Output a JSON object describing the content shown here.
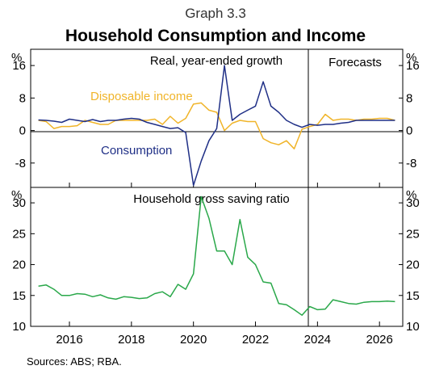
{
  "header": {
    "graph_label": "Graph 3.3",
    "title": "Household Consumption and Income"
  },
  "footer": {
    "sources": "Sources:   ABS;  RBA."
  },
  "colors": {
    "consumption": "#1f2f86",
    "disposable_income": "#f0b429",
    "saving_ratio": "#2aa84a",
    "axis": "#000000",
    "zero_line": "#000000",
    "forecast_divider": "#000000"
  },
  "x_axis": {
    "tick_labels": [
      "2016",
      "2018",
      "2020",
      "2022",
      "2024",
      "2026"
    ],
    "tick_values": [
      2016,
      2018,
      2020,
      2022,
      2024,
      2026
    ],
    "range": [
      2014.75,
      2026.75
    ],
    "forecast_start": 2023.95
  },
  "chart_data": [
    {
      "type": "line",
      "panel": "top",
      "title": "Real, year-ended growth",
      "forecast_label": "Forecasts",
      "y_unit_left": "%",
      "y_unit_right": "%",
      "ylim": [
        -14,
        20
      ],
      "y_ticks": [
        16,
        8,
        0,
        -8
      ],
      "y_tick_labels": [
        "16",
        "8",
        "0",
        "-8"
      ],
      "grid": false,
      "series": [
        {
          "name": "Disposable income",
          "color": "#f0b429",
          "x": [
            2015.0,
            2015.25,
            2015.5,
            2015.75,
            2016.0,
            2016.25,
            2016.5,
            2016.75,
            2017.0,
            2017.25,
            2017.5,
            2017.75,
            2018.0,
            2018.25,
            2018.5,
            2018.75,
            2019.0,
            2019.25,
            2019.5,
            2019.75,
            2020.0,
            2020.25,
            2020.5,
            2020.75,
            2021.0,
            2021.25,
            2021.5,
            2021.75,
            2022.0,
            2022.25,
            2022.5,
            2022.75,
            2023.0,
            2023.25,
            2023.5,
            2023.75,
            2024.0,
            2024.25,
            2024.5,
            2024.75,
            2025.0,
            2025.25,
            2025.5,
            2025.75,
            2026.0,
            2026.25,
            2026.5
          ],
          "y": [
            2.5,
            2.2,
            0.5,
            1.0,
            1.0,
            1.2,
            2.5,
            2.0,
            1.5,
            1.5,
            2.5,
            2.5,
            2.5,
            2.5,
            2.5,
            2.8,
            1.5,
            3.5,
            1.8,
            3.0,
            6.5,
            6.8,
            5.0,
            4.5,
            0.0,
            1.8,
            2.5,
            2.2,
            2.2,
            -2.0,
            -3.0,
            -3.5,
            -2.5,
            -4.5,
            0.3,
            1.0,
            1.5,
            4.0,
            2.5,
            2.8,
            2.8,
            2.5,
            2.8,
            2.8,
            3.0,
            3.0,
            2.5
          ]
        },
        {
          "name": "Consumption",
          "color": "#1f2f86",
          "x": [
            2015.0,
            2015.25,
            2015.5,
            2015.75,
            2016.0,
            2016.25,
            2016.5,
            2016.75,
            2017.0,
            2017.25,
            2017.5,
            2017.75,
            2018.0,
            2018.25,
            2018.5,
            2018.75,
            2019.0,
            2019.25,
            2019.5,
            2019.75,
            2020.0,
            2020.25,
            2020.5,
            2020.75,
            2021.0,
            2021.25,
            2021.5,
            2021.75,
            2022.0,
            2022.25,
            2022.5,
            2022.75,
            2023.0,
            2023.25,
            2023.5,
            2023.75,
            2024.0,
            2024.25,
            2024.5,
            2024.75,
            2025.0,
            2025.25,
            2025.5,
            2025.75,
            2026.0,
            2026.25,
            2026.5
          ],
          "y": [
            2.6,
            2.5,
            2.3,
            2.0,
            2.8,
            2.5,
            2.2,
            2.7,
            2.2,
            2.5,
            2.5,
            2.8,
            3.0,
            2.8,
            2.0,
            1.5,
            1.0,
            0.5,
            0.7,
            -0.5,
            -13.5,
            -7.5,
            -2.5,
            0.5,
            16.0,
            2.5,
            4.0,
            5.0,
            6.0,
            12.0,
            6.0,
            4.5,
            2.5,
            1.5,
            0.8,
            1.5,
            1.3,
            1.5,
            1.5,
            1.8,
            2.0,
            2.5,
            2.5,
            2.5,
            2.5,
            2.5,
            2.5
          ]
        }
      ]
    },
    {
      "type": "line",
      "panel": "bottom",
      "title": "Household gross saving ratio",
      "y_unit_left": "%",
      "y_unit_right": "%",
      "ylim": [
        10,
        32.5
      ],
      "y_ticks": [
        30,
        25,
        20,
        15,
        10
      ],
      "y_tick_labels": [
        "30",
        "25",
        "20",
        "15",
        "10"
      ],
      "grid": false,
      "series": [
        {
          "color": "#2aa84a",
          "x": [
            2015.0,
            2015.25,
            2015.5,
            2015.75,
            2016.0,
            2016.25,
            2016.5,
            2016.75,
            2017.0,
            2017.25,
            2017.5,
            2017.75,
            2018.0,
            2018.25,
            2018.5,
            2018.75,
            2019.0,
            2019.25,
            2019.5,
            2019.75,
            2020.0,
            2020.25,
            2020.5,
            2020.75,
            2021.0,
            2021.25,
            2021.5,
            2021.75,
            2022.0,
            2022.25,
            2022.5,
            2022.75,
            2023.0,
            2023.25,
            2023.5,
            2023.75,
            2024.0,
            2024.25,
            2024.5,
            2024.75,
            2025.0,
            2025.25,
            2025.5,
            2025.75,
            2026.0,
            2026.25,
            2026.5
          ],
          "y": [
            16.5,
            16.7,
            16.0,
            15.0,
            15.0,
            15.3,
            15.2,
            14.8,
            15.1,
            14.6,
            14.4,
            14.8,
            14.7,
            14.5,
            14.6,
            15.3,
            15.6,
            14.8,
            16.8,
            16.0,
            18.5,
            31.0,
            27.5,
            22.2,
            22.2,
            20.0,
            27.3,
            21.2,
            20.0,
            17.2,
            17.0,
            13.7,
            13.5,
            12.7,
            11.8,
            13.2,
            12.7,
            12.8,
            14.3,
            14.0,
            13.7,
            13.6,
            13.9,
            14.0,
            14.0,
            14.1,
            14.0
          ]
        }
      ]
    }
  ]
}
